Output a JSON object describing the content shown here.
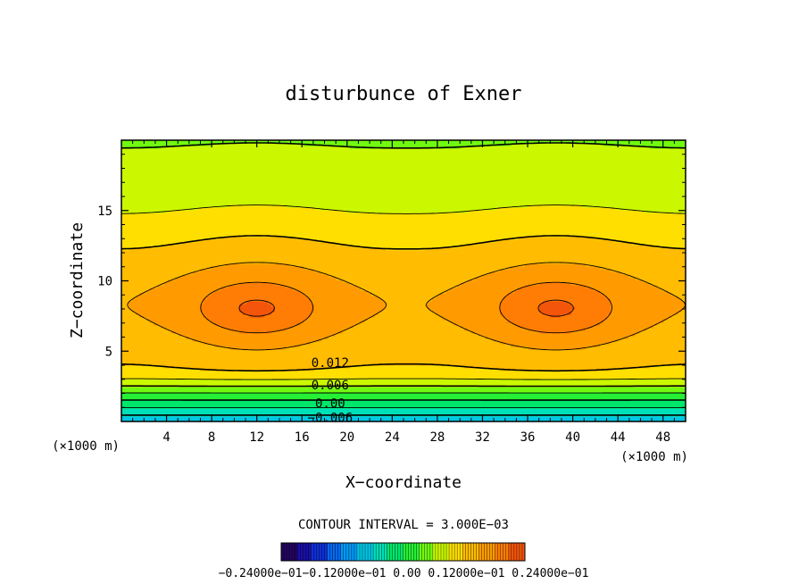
{
  "chart_data": {
    "type": "contour",
    "title": "disturbunce of Exner",
    "xlabel": "X−coordinate",
    "ylabel": "Z−coordinate",
    "x_unit": "(×1000 m)",
    "z_unit": "(×1000 m)",
    "xlim": [
      0,
      50
    ],
    "ylim": [
      0,
      20
    ],
    "x_ticks": [
      4,
      8,
      12,
      16,
      20,
      24,
      28,
      32,
      36,
      40,
      44,
      48
    ],
    "x_tick_labels": [
      "4",
      "8",
      "12",
      "16",
      "20",
      "24",
      "28",
      "32",
      "36",
      "40",
      "44",
      "48"
    ],
    "y_ticks": [
      5,
      10,
      15
    ],
    "y_tick_labels": [
      "5",
      "10",
      "15"
    ],
    "contour_interval_text": "CONTOUR INTERVAL = 3.000E−03",
    "contour_interval": 0.003,
    "contour_labels": [
      {
        "text": "0.012",
        "x": 18.5,
        "z": 4.2
      },
      {
        "text": "0.006",
        "x": 18.5,
        "z": 2.6
      },
      {
        "text": "0.00",
        "x": 18.5,
        "z": 1.3
      },
      {
        "text": "−0.006",
        "x": 18.5,
        "z": 0.3
      }
    ],
    "colorbar": {
      "labels_text": "−0.24000e−01−0.12000e−01  0.00  0.12000e−01  0.24000e−01",
      "min": -0.024,
      "max": 0.024
    },
    "maxima": [
      {
        "x": 12,
        "z": 8,
        "value": 0.024
      },
      {
        "x": 38.5,
        "z": 8,
        "value": 0.024
      }
    ]
  }
}
